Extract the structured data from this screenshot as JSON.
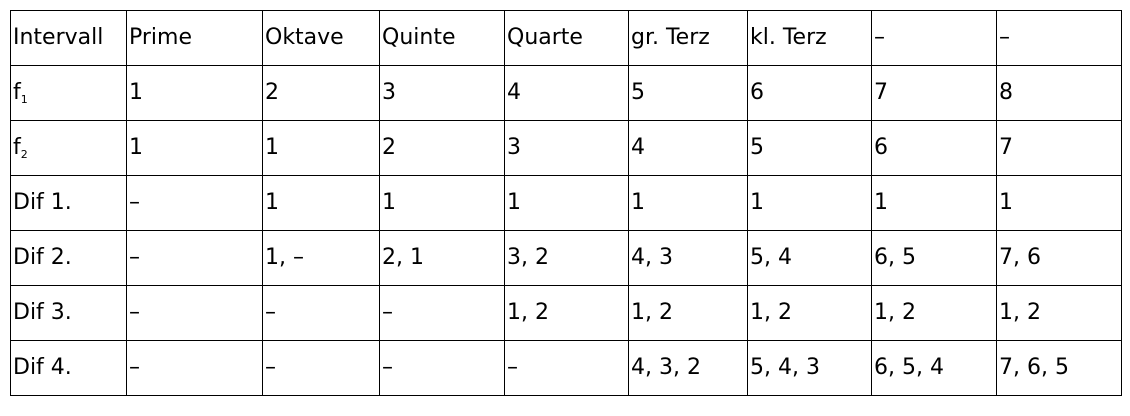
{
  "table": {
    "rows": [
      {
        "label": "Intervall",
        "label_sub": "",
        "cells": [
          "Prime",
          "Oktave",
          "Quinte",
          "Quarte",
          "gr. Terz",
          "kl. Terz",
          "–",
          "–"
        ]
      },
      {
        "label": "f",
        "label_sub": "1",
        "cells": [
          "1",
          "2",
          "3",
          "4",
          "5",
          "6",
          "7",
          "8"
        ]
      },
      {
        "label": "f",
        "label_sub": "2",
        "cells": [
          "1",
          "1",
          "2",
          "3",
          "4",
          "5",
          "6",
          "7"
        ]
      },
      {
        "label": "Dif 1.",
        "label_sub": "",
        "cells": [
          "–",
          "1",
          "1",
          "1",
          "1",
          "1",
          "1",
          "1"
        ]
      },
      {
        "label": "Dif 2.",
        "label_sub": "",
        "cells": [
          "–",
          "1, –",
          "2, 1",
          "3, 2",
          "4, 3",
          "5, 4",
          "6, 5",
          "7, 6"
        ]
      },
      {
        "label": "Dif 3.",
        "label_sub": "",
        "cells": [
          "–",
          "–",
          "–",
          "1, 2",
          "1, 2",
          "1, 2",
          "1, 2",
          "1, 2"
        ]
      },
      {
        "label": "Dif 4.",
        "label_sub": "",
        "cells": [
          "–",
          "–",
          "–",
          "–",
          "4, 3, 2",
          "5, 4, 3",
          "6, 5, 4",
          "7, 6, 5"
        ]
      }
    ]
  }
}
